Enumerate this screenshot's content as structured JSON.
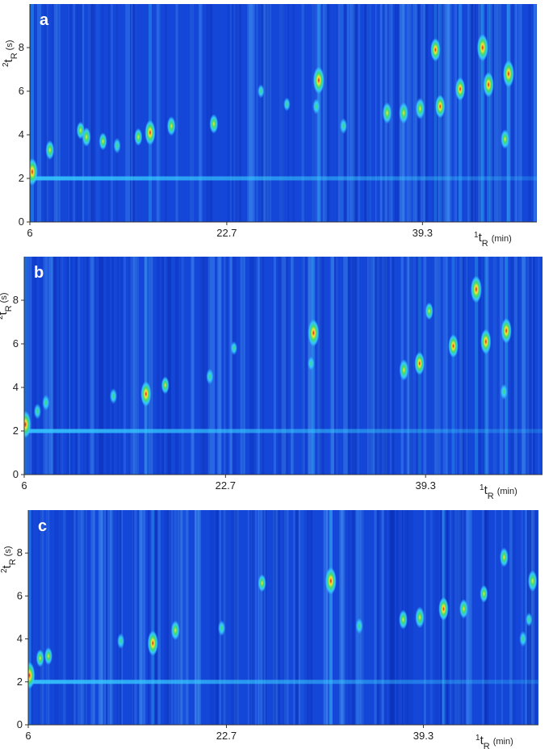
{
  "chart_data": [
    {
      "type": "gcxgc",
      "panel_label": "a",
      "xlabel_parts": [
        "1",
        "t",
        "R",
        "(min)"
      ],
      "ylabel_parts": [
        "2",
        "t",
        "R",
        "(s)"
      ],
      "xlim": [
        6,
        49
      ],
      "xticks": [
        6,
        22.7,
        39.3
      ],
      "ylim": [
        0,
        10
      ],
      "yticks": [
        0,
        2,
        4,
        6,
        8
      ],
      "colormap": [
        "#1446d8",
        "#35c8ff",
        "#3fdc6a",
        "#ffe23a",
        "#d81a1e"
      ],
      "bleed_y": 2,
      "x": [
        6.2,
        7.7,
        10.3,
        10.8,
        12.2,
        13.4,
        15.2,
        16.2,
        18.0,
        21.6,
        25.6,
        27.8,
        30.5,
        30.3,
        32.6,
        36.3,
        37.7,
        39.1,
        40.4,
        40.8,
        42.5,
        44.4,
        44.9,
        46.6,
        46.3
      ],
      "values": [
        2.3,
        3.3,
        4.2,
        3.9,
        3.7,
        3.5,
        3.9,
        4.1,
        4.4,
        4.5,
        6.0,
        5.4,
        6.5,
        5.3,
        4.4,
        5.0,
        5.0,
        5.2,
        7.9,
        5.3,
        6.1,
        8.0,
        6.3,
        6.8,
        3.8
      ],
      "intensity": [
        1.0,
        0.6,
        0.5,
        0.6,
        0.5,
        0.4,
        0.5,
        0.9,
        0.6,
        0.6,
        0.3,
        0.3,
        1.0,
        0.4,
        0.4,
        0.7,
        0.7,
        0.7,
        0.8,
        0.8,
        0.8,
        1.0,
        0.9,
        1.0,
        0.6
      ]
    },
    {
      "type": "gcxgc",
      "panel_label": "b",
      "xlabel_parts": [
        "1",
        "t",
        "R",
        "(min)"
      ],
      "ylabel_parts": [
        "2",
        "t",
        "R",
        "(s)"
      ],
      "xlim": [
        6,
        49
      ],
      "xticks": [
        6,
        22.7,
        39.3
      ],
      "ylim": [
        0,
        10
      ],
      "yticks": [
        0,
        2,
        4,
        6,
        8
      ],
      "colormap": [
        "#1446d8",
        "#35c8ff",
        "#3fdc6a",
        "#ffe23a",
        "#d81a1e"
      ],
      "bleed_y": 2,
      "x": [
        6.1,
        7.1,
        7.8,
        13.4,
        16.1,
        17.7,
        21.4,
        23.4,
        30.0,
        29.8,
        37.5,
        38.8,
        39.6,
        41.6,
        43.5,
        44.3,
        46.0,
        45.8
      ],
      "values": [
        2.3,
        2.9,
        3.3,
        3.6,
        3.7,
        4.1,
        4.5,
        5.8,
        6.5,
        5.1,
        4.8,
        5.1,
        7.5,
        5.9,
        8.5,
        6.1,
        6.6,
        3.8
      ],
      "intensity": [
        1.0,
        0.4,
        0.4,
        0.4,
        0.9,
        0.5,
        0.4,
        0.3,
        1.0,
        0.3,
        0.7,
        0.8,
        0.5,
        0.8,
        1.0,
        0.9,
        0.9,
        0.4
      ]
    },
    {
      "type": "gcxgc",
      "panel_label": "c",
      "xlabel_parts": [
        "1",
        "t",
        "R",
        "(min)"
      ],
      "ylabel_parts": [
        "2",
        "t",
        "R",
        "(s)"
      ],
      "xlim": [
        6,
        49
      ],
      "xticks": [
        6,
        22.7,
        39.3
      ],
      "ylim": [
        0,
        10
      ],
      "yticks": [
        0,
        2,
        4,
        6,
        8
      ],
      "colormap": [
        "#1446d8",
        "#35c8ff",
        "#3fdc6a",
        "#ffe23a",
        "#d81a1e"
      ],
      "bleed_y": 2,
      "x": [
        6.1,
        7.0,
        7.7,
        13.8,
        16.5,
        18.4,
        22.3,
        25.7,
        31.5,
        33.9,
        37.6,
        39.0,
        41.0,
        42.7,
        44.4,
        46.1,
        48.5,
        48.2,
        47.7
      ],
      "values": [
        2.3,
        3.1,
        3.2,
        3.9,
        3.8,
        4.4,
        4.5,
        6.6,
        6.7,
        4.6,
        4.9,
        5.0,
        5.4,
        5.4,
        6.1,
        7.8,
        6.7,
        4.9,
        4.0
      ],
      "intensity": [
        1.0,
        0.5,
        0.5,
        0.4,
        0.9,
        0.6,
        0.4,
        0.5,
        1.0,
        0.4,
        0.6,
        0.7,
        0.8,
        0.6,
        0.5,
        0.6,
        0.7,
        0.3,
        0.4
      ]
    }
  ]
}
